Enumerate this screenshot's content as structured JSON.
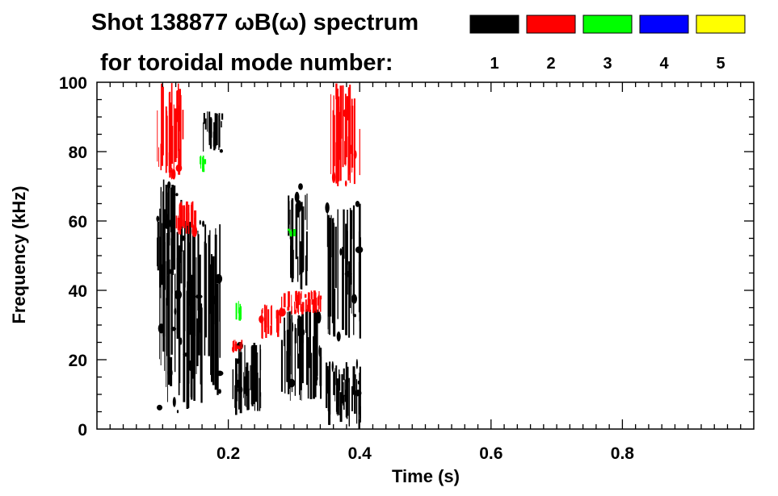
{
  "chart_data": {
    "type": "heatmap",
    "title_line1": "Shot 138877 ωB(ω) spectrum",
    "title_line2": "for toroidal mode number:",
    "xlabel": "Time (s)",
    "ylabel": "Frequency (kHz)",
    "xlim": [
      0.0,
      1.0
    ],
    "ylim": [
      0,
      100
    ],
    "xticks": [
      "0.2",
      "0.4",
      "0.6",
      "0.8"
    ],
    "xtick_values": [
      0.2,
      0.4,
      0.6,
      0.8
    ],
    "yticks": [
      "0",
      "20",
      "40",
      "60",
      "80",
      "100"
    ],
    "ytick_values": [
      0,
      20,
      40,
      60,
      80,
      100
    ],
    "legend_placement": "top-right",
    "modes": [
      {
        "label": "1",
        "color": "#000000"
      },
      {
        "label": "2",
        "color": "#ff0000"
      },
      {
        "label": "3",
        "color": "#00ff00"
      },
      {
        "label": "4",
        "color": "#0000ff"
      },
      {
        "label": "5",
        "color": "#ffff00"
      }
    ],
    "regions": [
      {
        "mode": "1",
        "t": [
          0.09,
          0.13
        ],
        "f": [
          40,
          72
        ]
      },
      {
        "mode": "1",
        "t": [
          0.095,
          0.19
        ],
        "f": [
          5,
          60
        ]
      },
      {
        "mode": "1",
        "t": [
          0.16,
          0.19
        ],
        "f": [
          80,
          92
        ]
      },
      {
        "mode": "1",
        "t": [
          0.205,
          0.25
        ],
        "f": [
          3,
          25
        ]
      },
      {
        "mode": "1",
        "t": [
          0.28,
          0.34
        ],
        "f": [
          8,
          35
        ]
      },
      {
        "mode": "1",
        "t": [
          0.29,
          0.32
        ],
        "f": [
          40,
          70
        ]
      },
      {
        "mode": "1",
        "t": [
          0.35,
          0.4
        ],
        "f": [
          25,
          65
        ]
      },
      {
        "mode": "1",
        "t": [
          0.345,
          0.4
        ],
        "f": [
          0,
          20
        ]
      },
      {
        "mode": "2",
        "t": [
          0.09,
          0.13
        ],
        "f": [
          72,
          100
        ]
      },
      {
        "mode": "2",
        "t": [
          0.12,
          0.15
        ],
        "f": [
          56,
          66
        ]
      },
      {
        "mode": "2",
        "t": [
          0.205,
          0.22
        ],
        "f": [
          22,
          26
        ]
      },
      {
        "mode": "2",
        "t": [
          0.25,
          0.28
        ],
        "f": [
          26,
          36
        ]
      },
      {
        "mode": "2",
        "t": [
          0.28,
          0.34
        ],
        "f": [
          33,
          40
        ]
      },
      {
        "mode": "2",
        "t": [
          0.355,
          0.4
        ],
        "f": [
          70,
          100
        ]
      },
      {
        "mode": "3",
        "t": [
          0.155,
          0.165
        ],
        "f": [
          74,
          79
        ]
      },
      {
        "mode": "3",
        "t": [
          0.21,
          0.22
        ],
        "f": [
          31,
          37
        ]
      },
      {
        "mode": "3",
        "t": [
          0.29,
          0.3
        ],
        "f": [
          55,
          58
        ]
      }
    ]
  }
}
